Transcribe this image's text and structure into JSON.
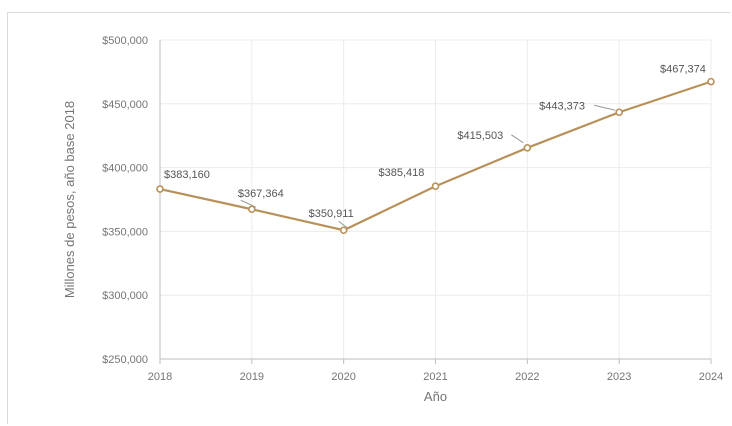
{
  "chart_data": {
    "type": "line",
    "x": [
      "2018",
      "2019",
      "2020",
      "2021",
      "2022",
      "2023",
      "2024"
    ],
    "series": [
      {
        "values": [
          383160,
          367364,
          350911,
          385418,
          415503,
          443373,
          467374
        ],
        "labels": [
          "$383,160",
          "$367,364",
          "$350,911",
          "$385,418",
          "$415,503",
          "$443,373",
          "$467,374"
        ],
        "color": "#b8915a"
      }
    ],
    "xlabel": "Año",
    "ylabel": "Millones de pesos, año base 2018",
    "ylim": [
      250000,
      500000
    ],
    "yticks": [
      250000,
      300000,
      350000,
      400000,
      450000,
      500000
    ],
    "ytick_labels": [
      "$250,000",
      "$300,000",
      "$350,000",
      "$400,000",
      "$450,000",
      "$500,000"
    ],
    "grid": true,
    "legend": "none"
  }
}
